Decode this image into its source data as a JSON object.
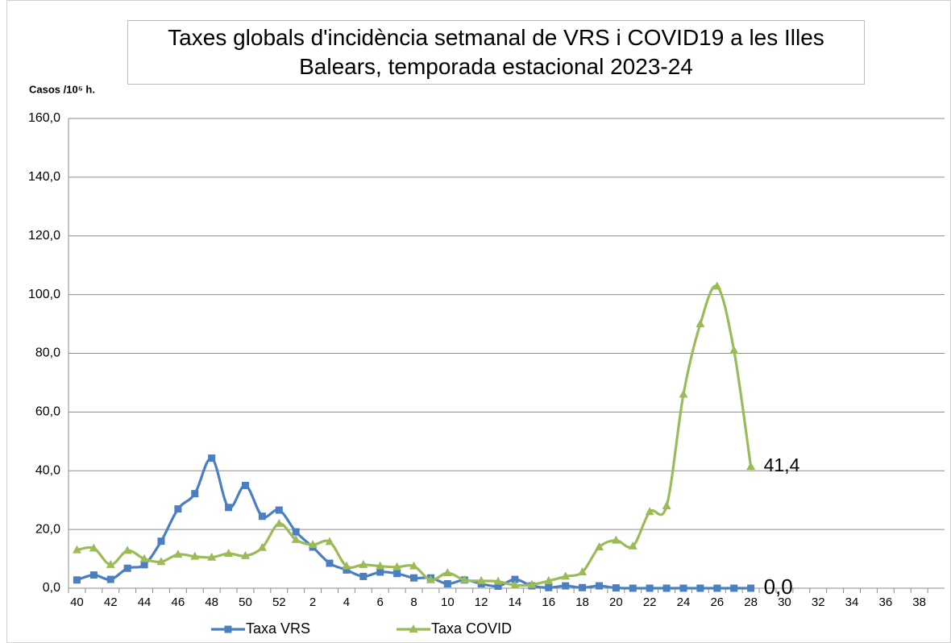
{
  "chart_data": {
    "type": "line",
    "title": "Taxes globals d'incidència setmanal de VRS i COVID19 a les Illes Balears, temporada estacional 2023-24",
    "ylabel": "Casos /10⁵ h.",
    "categories": [
      40,
      null,
      42,
      null,
      44,
      null,
      46,
      null,
      48,
      null,
      50,
      null,
      52,
      null,
      2,
      null,
      4,
      null,
      6,
      null,
      8,
      null,
      10,
      null,
      12,
      null,
      14,
      null,
      16,
      null,
      18,
      null,
      20,
      null,
      22,
      null,
      24,
      null,
      26,
      null,
      28,
      null,
      30,
      null,
      32,
      null,
      34,
      null,
      36,
      null,
      38,
      null
    ],
    "series": [
      {
        "name": "Taxa VRS",
        "color": "#4a7fc1",
        "marker": "square",
        "values": [
          2.8,
          4.5,
          3.0,
          6.8,
          8.0,
          16.0,
          27.0,
          32.2,
          44.3,
          27.5,
          35.0,
          24.5,
          26.6,
          19.2,
          14.0,
          8.5,
          6.2,
          4.0,
          5.5,
          5.0,
          3.5,
          3.5,
          1.5,
          2.8,
          1.5,
          0.7,
          3.0,
          0.8,
          0.2,
          0.8,
          0.2,
          0.8,
          0.1,
          0,
          0,
          0,
          0,
          0,
          0,
          0,
          0,
          null,
          null,
          null,
          null,
          null,
          null,
          null,
          null,
          null,
          null,
          null
        ],
        "value_labels": [
          null,
          null,
          null,
          null,
          null,
          null,
          null,
          null,
          null,
          null,
          null,
          null,
          null,
          null,
          null,
          null,
          null,
          null,
          null,
          null,
          null,
          null,
          null,
          null,
          null,
          null,
          null,
          null,
          null,
          null,
          null,
          null,
          null,
          null,
          null,
          null,
          null,
          null,
          null,
          null,
          "0,0",
          null,
          null,
          null,
          null,
          null,
          null,
          null,
          null,
          null,
          null,
          null
        ]
      },
      {
        "name": "Taxa COVID",
        "color": "#9bbb59",
        "marker": "triangle",
        "values": [
          13.0,
          13.6,
          8.0,
          12.8,
          10.0,
          9.0,
          11.5,
          10.8,
          10.5,
          11.8,
          11.0,
          13.8,
          22.0,
          16.5,
          14.8,
          15.8,
          7.5,
          8.0,
          7.5,
          7.2,
          7.5,
          2.8,
          5.2,
          2.8,
          2.5,
          2.3,
          1.0,
          1.2,
          2.5,
          4.0,
          5.5,
          14.0,
          16.3,
          14.3,
          26.0,
          28.0,
          66.0,
          90.0,
          102.8,
          81.0,
          41.4,
          null,
          null,
          null,
          null,
          null,
          null,
          null,
          null,
          null,
          null,
          null
        ],
        "value_labels": [
          null,
          null,
          null,
          null,
          null,
          null,
          null,
          null,
          null,
          null,
          null,
          null,
          null,
          null,
          null,
          null,
          null,
          null,
          null,
          null,
          null,
          null,
          null,
          null,
          null,
          null,
          null,
          null,
          null,
          null,
          null,
          null,
          null,
          null,
          null,
          null,
          null,
          null,
          null,
          null,
          "41,4",
          null,
          null,
          null,
          null,
          null,
          null,
          null,
          null,
          null,
          null,
          null
        ]
      }
    ],
    "ylim": [
      0,
      160
    ],
    "yticks": [
      {
        "value": 0,
        "label": "0,0"
      },
      {
        "value": 20,
        "label": "20,0"
      },
      {
        "value": 40,
        "label": "40,0"
      },
      {
        "value": 60,
        "label": "60,0"
      },
      {
        "value": 80,
        "label": "80,0"
      },
      {
        "value": 100,
        "label": "100,0"
      },
      {
        "value": 120,
        "label": "120,0"
      },
      {
        "value": 140,
        "label": "140,0"
      },
      {
        "value": 160,
        "label": "160,0"
      }
    ],
    "grid": true,
    "smooth": true,
    "legend": "bottom"
  }
}
